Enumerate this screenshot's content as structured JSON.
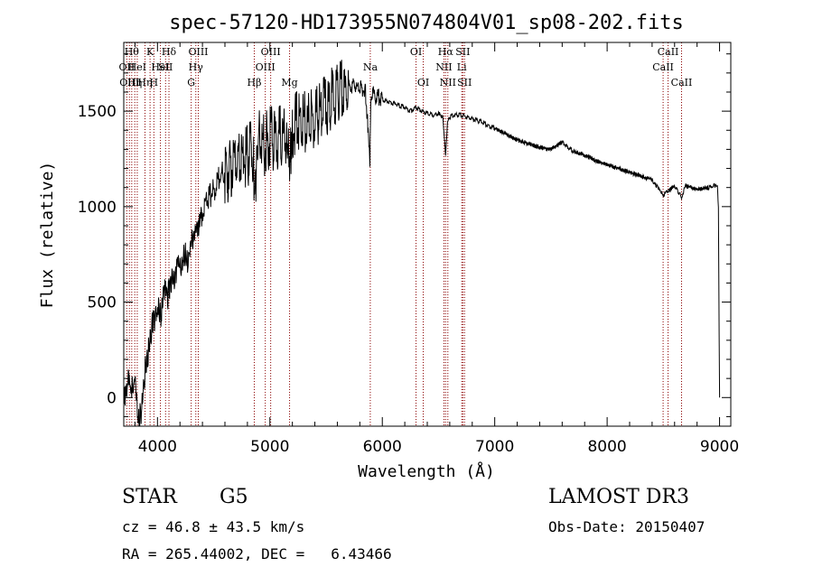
{
  "chart_data": {
    "type": "line",
    "title": "spec-57120-HD173955N074804V01_sp08-202.fits",
    "xlabel": "Wavelength (Å)",
    "ylabel": "Flux (relative)",
    "xlim": [
      3700,
      9100
    ],
    "ylim": [
      -150,
      1860
    ],
    "xticks": [
      4000,
      5000,
      6000,
      7000,
      8000,
      9000
    ],
    "yticks": [
      0,
      500,
      1000,
      1500
    ],
    "xtick_labels": [
      "4000",
      "5000",
      "6000",
      "7000",
      "8000",
      "9000"
    ],
    "ytick_labels": [
      "0",
      "500",
      "1000",
      "1500"
    ],
    "grid": false,
    "line_color": "#000000",
    "marker_color": "#8b0000",
    "series": [
      {
        "x": [
          3700,
          3740,
          3780,
          3800,
          3830,
          3860,
          3890,
          3920,
          3950,
          3980,
          4000,
          4030,
          4060,
          4090,
          4120,
          4150,
          4180,
          4210,
          4240,
          4270,
          4300,
          4330,
          4360,
          4400,
          4450,
          4500,
          4550,
          4600,
          4650,
          4700,
          4750,
          4800,
          4850,
          4861,
          4900,
          4950,
          5000,
          5050,
          5100,
          5150,
          5175,
          5200,
          5250,
          5300,
          5350,
          5400,
          5450,
          5500,
          5550,
          5600,
          5650,
          5700,
          5750,
          5800,
          5850,
          5890,
          5895,
          5900,
          5950,
          6000,
          6050,
          6100,
          6150,
          6200,
          6250,
          6300,
          6350,
          6400,
          6450,
          6500,
          6540,
          6563,
          6580,
          6600,
          6650,
          6700,
          6750,
          6800,
          6850,
          6900,
          6950,
          7000,
          7100,
          7200,
          7300,
          7400,
          7500,
          7600,
          7650,
          7700,
          7800,
          7900,
          8000,
          8100,
          8200,
          8300,
          8400,
          8498,
          8542,
          8600,
          8662,
          8700,
          8800,
          8900,
          8950,
          8980,
          8990,
          9000
        ],
        "y": [
          0,
          80,
          40,
          100,
          -130,
          -60,
          150,
          250,
          380,
          420,
          480,
          440,
          560,
          520,
          620,
          590,
          700,
          680,
          760,
          720,
          830,
          860,
          900,
          970,
          1050,
          1080,
          1150,
          1180,
          1200,
          1250,
          1270,
          1260,
          1300,
          1100,
          1340,
          1320,
          1360,
          1350,
          1380,
          1370,
          1200,
          1420,
          1440,
          1460,
          1430,
          1480,
          1500,
          1520,
          1560,
          1580,
          1610,
          1630,
          1640,
          1620,
          1610,
          1250,
          1450,
          1600,
          1580,
          1560,
          1550,
          1540,
          1530,
          1520,
          1500,
          1520,
          1500,
          1490,
          1480,
          1490,
          1470,
          1260,
          1440,
          1470,
          1480,
          1480,
          1470,
          1460,
          1450,
          1440,
          1420,
          1410,
          1380,
          1350,
          1330,
          1310,
          1300,
          1340,
          1310,
          1290,
          1270,
          1240,
          1220,
          1200,
          1180,
          1160,
          1140,
          1060,
          1080,
          1110,
          1050,
          1110,
          1090,
          1100,
          1110,
          1110,
          1000,
          0
        ]
      }
    ],
    "markers": [
      {
        "x": 3727,
        "label": "OII",
        "row": 2
      },
      {
        "x": 3750,
        "label": "OIII",
        "row": 3
      },
      {
        "x": 3771,
        "label": "Hθ",
        "row": 1
      },
      {
        "x": 3798,
        "label": "Hη",
        "row": 3
      },
      {
        "x": 3820,
        "label": "HeI",
        "row": 2
      },
      {
        "x": 3889,
        "label": "Hη",
        "row": 3
      },
      {
        "x": 3934,
        "label": "K",
        "row": 1
      },
      {
        "x": 3968,
        "label": "H",
        "row": 3
      },
      {
        "x": 4026,
        "label": "HeI",
        "row": 2
      },
      {
        "x": 4072,
        "label": "SII",
        "row": 2
      },
      {
        "x": 4102,
        "label": "Hδ",
        "row": 1
      },
      {
        "x": 4300,
        "label": "G",
        "row": 3
      },
      {
        "x": 4341,
        "label": "Hγ",
        "row": 2
      },
      {
        "x": 4363,
        "label": "OIII",
        "row": 1
      },
      {
        "x": 4861,
        "label": "Hβ",
        "row": 3
      },
      {
        "x": 4959,
        "label": "OIII",
        "row": 2
      },
      {
        "x": 5007,
        "label": "OIII",
        "row": 1
      },
      {
        "x": 5175,
        "label": "Mg",
        "row": 3
      },
      {
        "x": 5893,
        "label": "Na",
        "row": 2
      },
      {
        "x": 6300,
        "label": "OI",
        "row": 1
      },
      {
        "x": 6364,
        "label": "OI",
        "row": 3
      },
      {
        "x": 6548,
        "label": "NII",
        "row": 2
      },
      {
        "x": 6563,
        "label": "Hα",
        "row": 1
      },
      {
        "x": 6583,
        "label": "NII",
        "row": 3
      },
      {
        "x": 6707,
        "label": "Li",
        "row": 2
      },
      {
        "x": 6716,
        "label": "SII",
        "row": 1
      },
      {
        "x": 6731,
        "label": "SII",
        "row": 3
      },
      {
        "x": 8498,
        "label": "CaII",
        "row": 2
      },
      {
        "x": 8542,
        "label": "CaII",
        "row": 1
      },
      {
        "x": 8662,
        "label": "CaII",
        "row": 3
      }
    ]
  },
  "info": {
    "object_class": "STAR",
    "subclass": "G5",
    "survey": "LAMOST DR3",
    "redshift": "cz = 46.8 ± 43.5 km/s",
    "obs_date": "Obs-Date: 20150407",
    "coords": "RA = 265.44002, DEC =   6.43466"
  }
}
